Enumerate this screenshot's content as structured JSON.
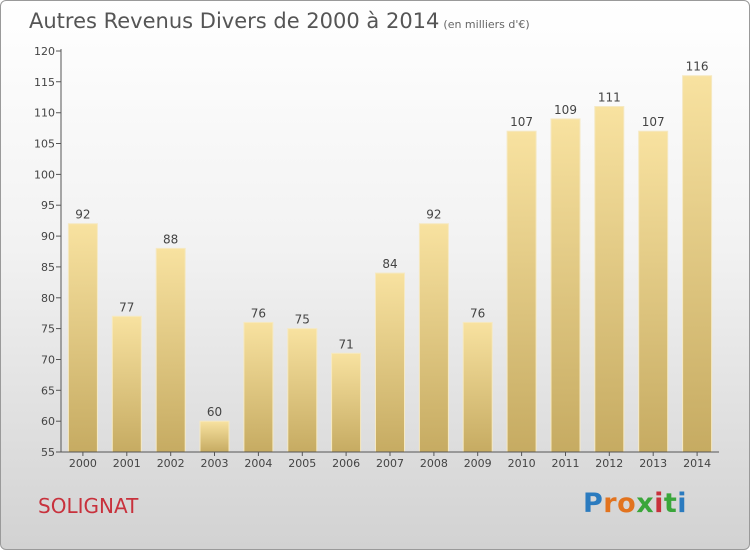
{
  "header": {
    "title": "Autres Revenus Divers de 2000 à 2014",
    "subtitle": "(en milliers d'€)"
  },
  "footer": {
    "city": "SOLIGNAT",
    "logo": "Proxiti"
  },
  "colors": {
    "bar_top": "#f8e2a0",
    "bar_bottom": "#c6ab62",
    "axis": "#555555",
    "city": "#c8313c"
  },
  "chart_data": {
    "type": "bar",
    "title": "Autres Revenus Divers de 2000 à 2014",
    "subtitle": "(en milliers d'€)",
    "categories": [
      "2000",
      "2001",
      "2002",
      "2003",
      "2004",
      "2005",
      "2006",
      "2007",
      "2008",
      "2009",
      "2010",
      "2011",
      "2012",
      "2013",
      "2014"
    ],
    "values": [
      92,
      77,
      88,
      60,
      76,
      75,
      71,
      84,
      92,
      76,
      107,
      109,
      111,
      107,
      116
    ],
    "ylim": [
      55,
      120
    ],
    "yticks": [
      55,
      60,
      65,
      70,
      75,
      80,
      85,
      90,
      95,
      100,
      105,
      110,
      115,
      120
    ],
    "grid": false,
    "legend": "none"
  }
}
